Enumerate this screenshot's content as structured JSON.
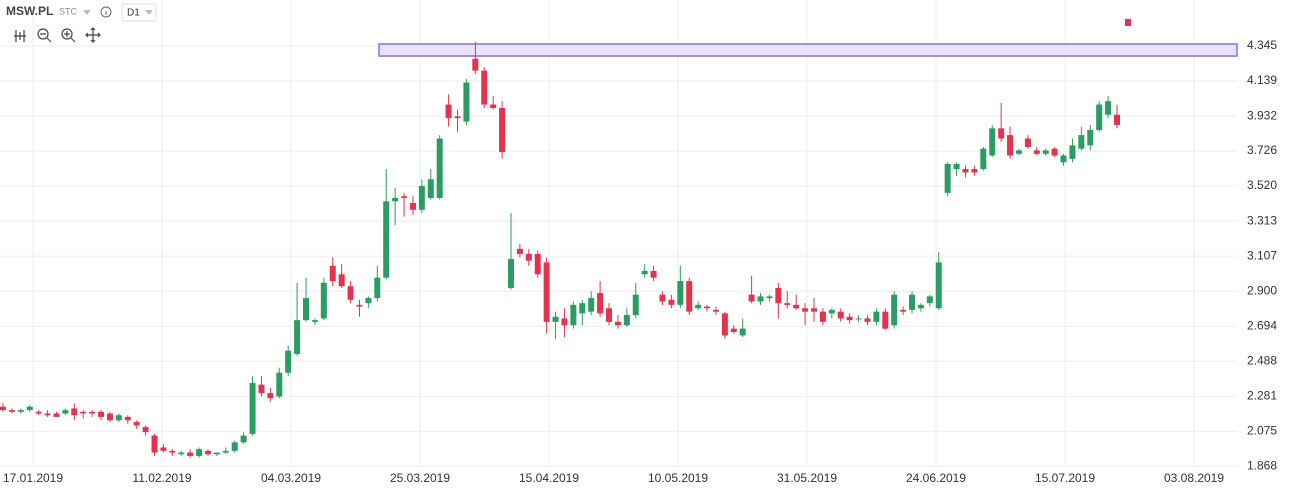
{
  "chart_data": {
    "type": "candlestick",
    "symbol": "MSW.PL",
    "market": "STC",
    "interval": "D1",
    "up_color": "#2a9d62",
    "down_color": "#e3334f",
    "grid": true,
    "ylim": [
      1.8,
      4.616
    ],
    "yticks": [
      1.868,
      2.075,
      2.281,
      2.488,
      2.694,
      {
        "value": 2.9,
        "label": "2.900"
      },
      3.107,
      3.313,
      {
        "value": 3.52,
        "label": "3.520"
      },
      3.726,
      3.932,
      4.139,
      4.345
    ],
    "xticks": [
      "17.01.2019",
      "11.02.2019",
      "04.03.2019",
      "25.03.2019",
      "15.04.2019",
      "10.05.2019",
      "31.05.2019",
      "24.06.2019",
      "15.07.2019",
      "03.08.2019"
    ],
    "zone": {
      "top": 4.357,
      "bottom": 4.286,
      "color": "#8e6fd8",
      "fill": "#e9e2fa"
    },
    "candles": [
      [
        2.22,
        2.24,
        2.19,
        2.2
      ],
      [
        2.2,
        2.21,
        2.18,
        2.19
      ],
      [
        2.19,
        2.21,
        2.18,
        2.2
      ],
      [
        2.2,
        2.23,
        2.19,
        2.22
      ],
      [
        2.19,
        2.2,
        2.17,
        2.18
      ],
      [
        2.18,
        2.2,
        2.16,
        2.17
      ],
      [
        2.18,
        2.19,
        2.16,
        2.16
      ],
      [
        2.18,
        2.21,
        2.17,
        2.2
      ],
      [
        2.21,
        2.24,
        2.14,
        2.17
      ],
      [
        2.19,
        2.2,
        2.15,
        2.18
      ],
      [
        2.19,
        2.2,
        2.16,
        2.18
      ],
      [
        2.19,
        2.2,
        2.14,
        2.16
      ],
      [
        2.18,
        2.19,
        2.13,
        2.14
      ],
      [
        2.14,
        2.18,
        2.13,
        2.17
      ],
      [
        2.16,
        2.17,
        2.12,
        2.14
      ],
      [
        2.13,
        2.14,
        2.09,
        2.11
      ],
      [
        2.1,
        2.11,
        2.05,
        2.07
      ],
      [
        2.05,
        2.06,
        1.93,
        1.95
      ],
      [
        1.98,
        2.0,
        1.95,
        1.96
      ],
      [
        1.96,
        1.97,
        1.93,
        1.95
      ],
      [
        1.94,
        1.96,
        1.93,
        1.95
      ],
      [
        1.95,
        1.97,
        1.92,
        1.93
      ],
      [
        1.93,
        1.98,
        1.92,
        1.97
      ],
      [
        1.96,
        1.97,
        1.93,
        1.94
      ],
      [
        1.94,
        1.95,
        1.93,
        1.95
      ],
      [
        1.95,
        1.98,
        1.94,
        1.96
      ],
      [
        1.96,
        2.02,
        1.95,
        2.01
      ],
      [
        2.01,
        2.07,
        2.0,
        2.05
      ],
      [
        2.06,
        2.4,
        2.05,
        2.36
      ],
      [
        2.35,
        2.4,
        2.28,
        2.3
      ],
      [
        2.3,
        2.33,
        2.25,
        2.27
      ],
      [
        2.28,
        2.45,
        2.27,
        2.42
      ],
      [
        2.42,
        2.58,
        2.4,
        2.55
      ],
      [
        2.53,
        2.95,
        2.52,
        2.73
      ],
      [
        2.73,
        2.98,
        2.72,
        2.86
      ],
      [
        2.72,
        2.74,
        2.7,
        2.73
      ],
      [
        2.74,
        2.98,
        2.73,
        2.95
      ],
      [
        3.05,
        3.1,
        2.93,
        2.96
      ],
      [
        3.0,
        3.06,
        2.92,
        2.93
      ],
      [
        2.93,
        2.96,
        2.83,
        2.85
      ],
      [
        2.82,
        2.85,
        2.75,
        2.81
      ],
      [
        2.83,
        2.87,
        2.8,
        2.86
      ],
      [
        2.86,
        3.05,
        2.84,
        2.98
      ],
      [
        2.98,
        3.62,
        2.97,
        3.43
      ],
      [
        3.43,
        3.51,
        3.29,
        3.45
      ],
      [
        3.46,
        3.48,
        3.34,
        3.45
      ],
      [
        3.42,
        3.46,
        3.35,
        3.38
      ],
      [
        3.38,
        3.56,
        3.36,
        3.52
      ],
      [
        3.45,
        3.62,
        3.44,
        3.56
      ],
      [
        3.45,
        3.82,
        3.44,
        3.8
      ],
      [
        4.0,
        4.06,
        3.87,
        3.92
      ],
      [
        3.93,
        3.97,
        3.84,
        3.92
      ],
      [
        3.9,
        4.15,
        3.88,
        4.13
      ],
      [
        4.27,
        4.37,
        4.18,
        4.2
      ],
      [
        4.2,
        4.22,
        3.98,
        4.0
      ],
      [
        4.0,
        4.05,
        3.97,
        3.98
      ],
      [
        3.98,
        4.02,
        3.68,
        3.72
      ],
      [
        2.92,
        3.36,
        2.91,
        3.09
      ],
      [
        3.15,
        3.18,
        3.1,
        3.12
      ],
      [
        3.12,
        3.15,
        3.05,
        3.08
      ],
      [
        3.12,
        3.14,
        2.98,
        3.0
      ],
      [
        3.07,
        3.1,
        2.65,
        2.72
      ],
      [
        2.72,
        2.78,
        2.62,
        2.75
      ],
      [
        2.74,
        2.8,
        2.63,
        2.7
      ],
      [
        2.7,
        2.84,
        2.68,
        2.82
      ],
      [
        2.77,
        2.85,
        2.7,
        2.83
      ],
      [
        2.78,
        2.9,
        2.76,
        2.86
      ],
      [
        2.89,
        2.96,
        2.75,
        2.77
      ],
      [
        2.8,
        2.83,
        2.7,
        2.72
      ],
      [
        2.72,
        2.76,
        2.68,
        2.7
      ],
      [
        2.7,
        2.8,
        2.69,
        2.76
      ],
      [
        2.76,
        2.95,
        2.74,
        2.88
      ],
      [
        3.0,
        3.06,
        2.98,
        3.02
      ],
      [
        3.02,
        3.05,
        2.96,
        2.98
      ],
      [
        2.88,
        2.9,
        2.82,
        2.84
      ],
      [
        2.85,
        2.88,
        2.8,
        2.82
      ],
      [
        2.82,
        3.05,
        2.8,
        2.96
      ],
      [
        2.96,
        2.98,
        2.76,
        2.78
      ],
      [
        2.8,
        2.84,
        2.79,
        2.82
      ],
      [
        2.81,
        2.82,
        2.78,
        2.8
      ],
      [
        2.79,
        2.81,
        2.76,
        2.78
      ],
      [
        2.77,
        2.78,
        2.62,
        2.64
      ],
      [
        2.68,
        2.7,
        2.65,
        2.66
      ],
      [
        2.64,
        2.74,
        2.63,
        2.68
      ],
      [
        2.88,
        2.99,
        2.83,
        2.84
      ],
      [
        2.84,
        2.89,
        2.82,
        2.87
      ],
      [
        2.86,
        2.88,
        2.84,
        2.87
      ],
      [
        2.92,
        2.95,
        2.74,
        2.83
      ],
      [
        2.83,
        2.9,
        2.8,
        2.82
      ],
      [
        2.82,
        2.88,
        2.79,
        2.8
      ],
      [
        2.8,
        2.83,
        2.7,
        2.78
      ],
      [
        2.8,
        2.86,
        2.72,
        2.78
      ],
      [
        2.78,
        2.8,
        2.7,
        2.72
      ],
      [
        2.77,
        2.8,
        2.74,
        2.79
      ],
      [
        2.78,
        2.8,
        2.72,
        2.74
      ],
      [
        2.75,
        2.77,
        2.71,
        2.73
      ],
      [
        2.74,
        2.76,
        2.72,
        2.74
      ],
      [
        2.74,
        2.76,
        2.7,
        2.72
      ],
      [
        2.72,
        2.8,
        2.7,
        2.78
      ],
      [
        2.78,
        2.8,
        2.67,
        2.68
      ],
      [
        2.7,
        2.9,
        2.68,
        2.88
      ],
      [
        2.79,
        2.81,
        2.76,
        2.78
      ],
      [
        2.79,
        2.9,
        2.77,
        2.88
      ],
      [
        2.8,
        2.83,
        2.78,
        2.82
      ],
      [
        2.83,
        2.88,
        2.81,
        2.87
      ],
      [
        2.8,
        3.13,
        2.79,
        3.07
      ],
      [
        3.48,
        3.66,
        3.46,
        3.65
      ],
      [
        3.62,
        3.66,
        3.58,
        3.65
      ],
      [
        3.62,
        3.64,
        3.57,
        3.6
      ],
      [
        3.62,
        3.64,
        3.58,
        3.6
      ],
      [
        3.62,
        3.75,
        3.61,
        3.74
      ],
      [
        3.7,
        3.88,
        3.69,
        3.86
      ],
      [
        3.86,
        4.01,
        3.78,
        3.8
      ],
      [
        3.82,
        3.87,
        3.68,
        3.7
      ],
      [
        3.71,
        3.74,
        3.7,
        3.73
      ],
      [
        3.8,
        3.82,
        3.74,
        3.75
      ],
      [
        3.73,
        3.75,
        3.7,
        3.71
      ],
      [
        3.71,
        3.74,
        3.7,
        3.73
      ],
      [
        3.74,
        3.75,
        3.69,
        3.7
      ],
      [
        3.66,
        3.71,
        3.64,
        3.7
      ],
      [
        3.68,
        3.8,
        3.66,
        3.76
      ],
      [
        3.74,
        3.87,
        3.73,
        3.82
      ],
      [
        3.76,
        3.88,
        3.73,
        3.85
      ],
      [
        3.85,
        4.02,
        3.84,
        4.0
      ],
      [
        3.94,
        4.05,
        3.92,
        4.02
      ],
      [
        3.94,
        4.0,
        3.86,
        3.88
      ]
    ]
  }
}
